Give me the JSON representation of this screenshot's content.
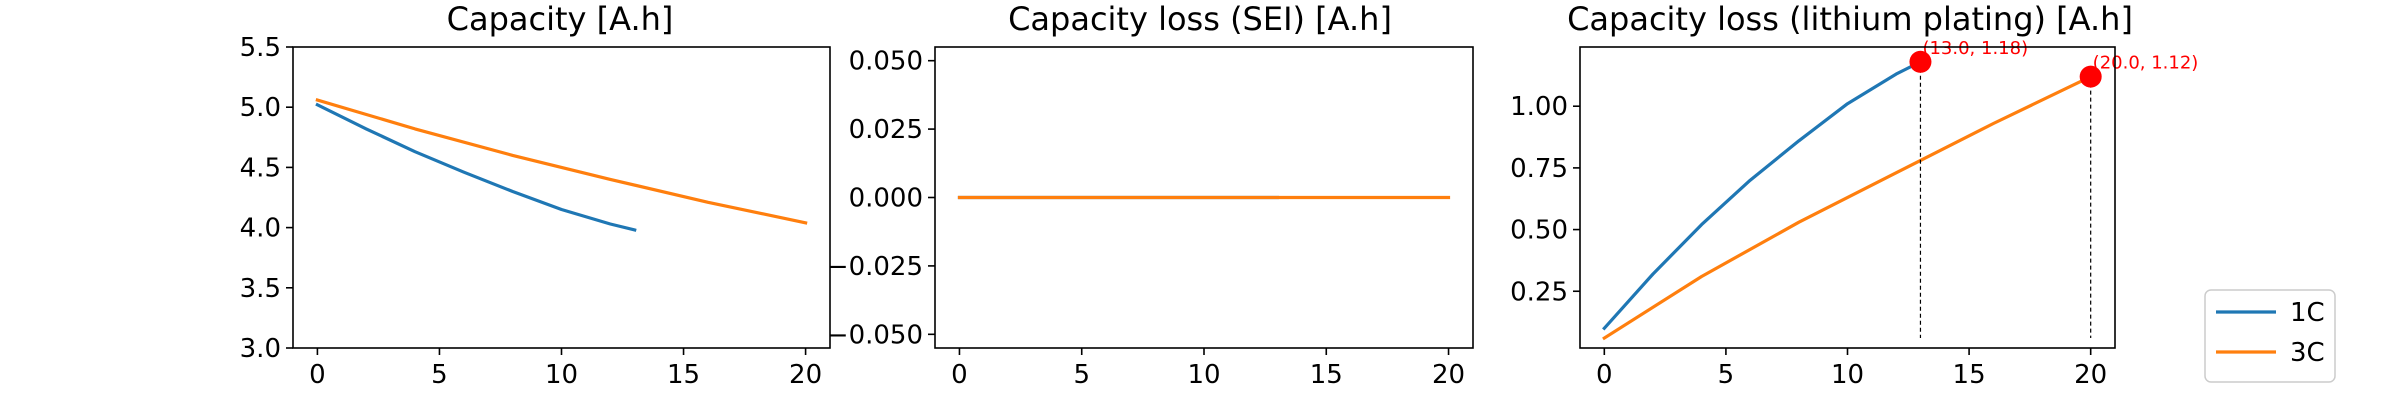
{
  "chart_data": [
    {
      "type": "line",
      "title": "Capacity [A.h]",
      "xlim": [
        -1,
        21
      ],
      "ylim": [
        3.0,
        5.5
      ],
      "xticks": [
        0,
        5,
        10,
        15,
        20
      ],
      "yticks": [
        3.0,
        3.5,
        4.0,
        4.5,
        5.0,
        5.5
      ],
      "ytick_labels": [
        "3.0",
        "3.5",
        "4.0",
        "4.5",
        "5.0",
        "5.5"
      ],
      "series": [
        {
          "color": "#1f77b4",
          "x": [
            0,
            2,
            4,
            6,
            8,
            10,
            12,
            13
          ],
          "y": [
            5.02,
            4.82,
            4.63,
            4.46,
            4.3,
            4.15,
            4.03,
            3.98
          ]
        },
        {
          "color": "#ff7f0e",
          "x": [
            0,
            4,
            8,
            12,
            16,
            20
          ],
          "y": [
            5.06,
            4.82,
            4.6,
            4.4,
            4.21,
            4.04
          ]
        }
      ]
    },
    {
      "type": "line",
      "title": "Capacity loss (SEI) [A.h]",
      "xlim": [
        -1,
        21
      ],
      "ylim": [
        -0.055,
        0.055
      ],
      "xticks": [
        0,
        5,
        10,
        15,
        20
      ],
      "yticks": [
        -0.05,
        -0.025,
        0.0,
        0.025,
        0.05
      ],
      "ytick_labels": [
        "−0.050",
        "−0.025",
        "0.000",
        "0.025",
        "0.050"
      ],
      "series": [
        {
          "color": "#1f77b4",
          "x": [
            0,
            13
          ],
          "y": [
            0,
            0
          ]
        },
        {
          "color": "#ff7f0e",
          "x": [
            0,
            20
          ],
          "y": [
            0,
            0
          ]
        }
      ]
    },
    {
      "type": "line",
      "title": "Capacity loss (lithium plating) [A.h]",
      "xlim": [
        -1,
        21
      ],
      "ylim": [
        0.02,
        1.24
      ],
      "xticks": [
        0,
        5,
        10,
        15,
        20
      ],
      "yticks": [
        0.25,
        0.5,
        0.75,
        1.0
      ],
      "ytick_labels": [
        "0.25",
        "0.50",
        "0.75",
        "1.00"
      ],
      "series": [
        {
          "color": "#1f77b4",
          "x": [
            0,
            2,
            4,
            6,
            8,
            10,
            12,
            13
          ],
          "y": [
            0.1,
            0.32,
            0.52,
            0.7,
            0.86,
            1.01,
            1.13,
            1.18
          ]
        },
        {
          "color": "#ff7f0e",
          "x": [
            0,
            4,
            8,
            12,
            16,
            20
          ],
          "y": [
            0.06,
            0.31,
            0.53,
            0.73,
            0.93,
            1.12
          ]
        }
      ],
      "annotations": [
        {
          "x": 13.0,
          "y": 1.18,
          "label": "(13.0, 1.18)",
          "color": "#ff0000"
        },
        {
          "x": 20.0,
          "y": 1.12,
          "label": "(20.0, 1.12)",
          "color": "#ff0000"
        }
      ]
    }
  ],
  "legend": {
    "position": "lower-right",
    "entries": [
      {
        "label": "1C",
        "color": "#1f77b4"
      },
      {
        "label": "3C",
        "color": "#ff7f0e"
      }
    ]
  }
}
